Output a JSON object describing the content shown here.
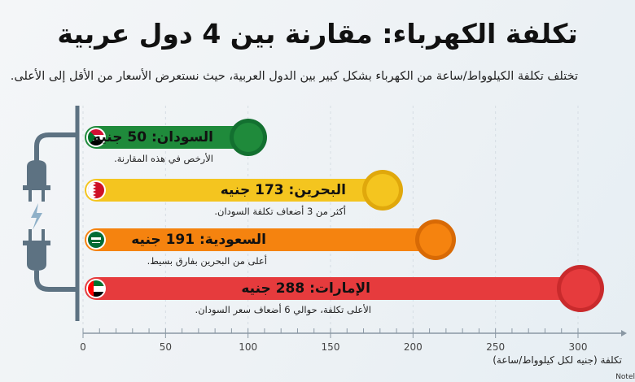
{
  "title": "تكلفة الكهرباء: مقارنة بين 4 دول عربية",
  "subtitle": "تختلف تكلفة الكيلوواط/ساعة من الكهرباء بشكل كبير بين الدول العربية، حيث نستعرض الأسعار من الأقل إلى الأعلى.",
  "watermark": "Notel",
  "chart_data": {
    "type": "bar",
    "orientation": "horizontal",
    "categories": [
      "السودان",
      "البحرين",
      "السعودية",
      "الإمارات"
    ],
    "values": [
      50,
      173,
      191,
      288
    ],
    "bar_labels": [
      "السودان: 50 جنيه",
      "البحرين: 173 جنيه",
      "السعودية: 191 جنيه",
      "الإمارات: 288 جنيه"
    ],
    "annotations": [
      "الأرخص في هذه المقارنة.",
      "أكثر من 3 أضعاف تكلفة السودان.",
      "أعلى من البحرين بفارق بسيط.",
      "الأعلى تكلفة، حوالي 6 أضعاف سعر السودان."
    ],
    "colors": [
      "#1f8a3b",
      "#f4c51f",
      "#f5830f",
      "#e63b3d"
    ],
    "flags": [
      "sudan-flag",
      "bahrain-flag",
      "saudi-flag",
      "uae-flag"
    ],
    "xlabel": "تكلفة (جنيه لكل كيلوواط/ساعة)",
    "xticks": [
      "0",
      "50",
      "100",
      "150",
      "200",
      "250",
      "300"
    ],
    "xlim": [
      0,
      300
    ],
    "grid": false
  }
}
